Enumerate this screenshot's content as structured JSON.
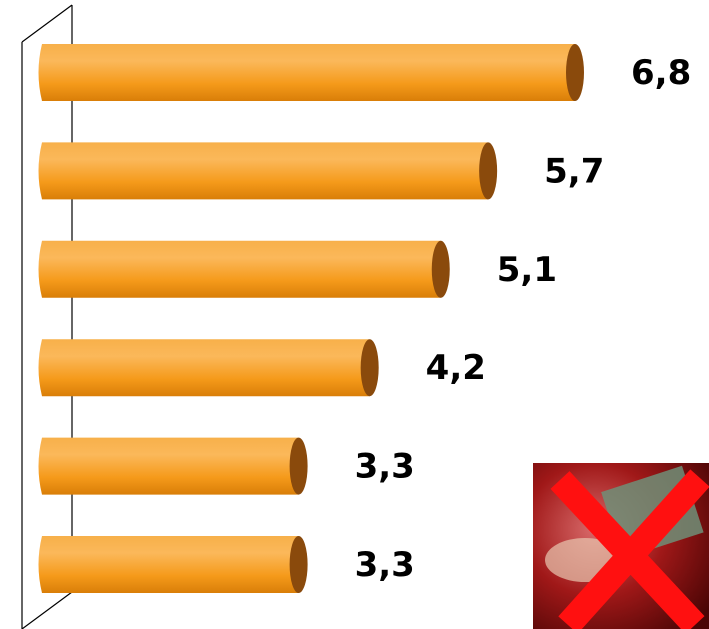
{
  "chart_data": {
    "type": "bar",
    "orientation": "horizontal",
    "categories": [
      null,
      null,
      null,
      null,
      null,
      null
    ],
    "values": [
      6.8,
      5.7,
      5.1,
      4.2,
      3.3,
      3.3
    ],
    "value_labels": [
      "6,8",
      "5,7",
      "5,1",
      "4,2",
      "3,3",
      "3,3"
    ],
    "color": "#f59a1a"
  }
}
